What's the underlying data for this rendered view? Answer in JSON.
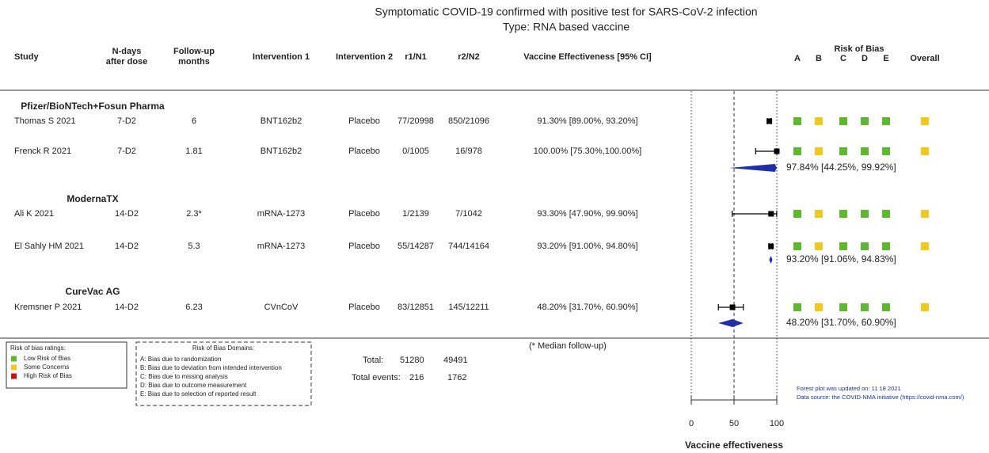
{
  "chart_data": {
    "type": "forest",
    "title": "Symptomatic COVID-19 confirmed with positive test for SARS-CoV-2 infection",
    "subtitle": "Type: RNA based vaccine",
    "columns": [
      "Study",
      "N-days after dose",
      "Follow-up months",
      "Intervention 1",
      "Intervention 2",
      "r1/N1",
      "r2/N2",
      "Vaccine Effectiveness [95% CI]"
    ],
    "rob_title": "Risk of Bias",
    "rob_columns": [
      "A",
      "B",
      "C",
      "D",
      "E",
      "Overall"
    ],
    "groups": [
      {
        "name": "Pfizer/BioNTech+Fosun Pharma",
        "studies": [
          {
            "study": "Thomas S 2021",
            "ndays": "7-D2",
            "followup": "6",
            "int1": "BNT162b2",
            "int2": "Placebo",
            "r1n1": "77/20998",
            "r2n2": "850/21096",
            "ve_label": "91.30% [89.00%, 93.20%]",
            "ve": 91.3,
            "lo": 89.0,
            "hi": 93.2,
            "rob": [
              "#5cb82e",
              "#f2c81d",
              "#5cb82e",
              "#5cb82e",
              "#5cb82e",
              "#f2c81d"
            ]
          },
          {
            "study": "Frenck R 2021",
            "ndays": "7-D2",
            "followup": "1.81",
            "int1": "BNT162b2",
            "int2": "Placebo",
            "r1n1": "0/1005",
            "r2n2": "16/978",
            "ve_label": "100.00% [75.30%,100.00%]",
            "ve": 100.0,
            "lo": 75.3,
            "hi": 100.0,
            "rob": [
              "#5cb82e",
              "#f2c81d",
              "#5cb82e",
              "#5cb82e",
              "#5cb82e",
              "#f2c81d"
            ]
          }
        ],
        "pooled": {
          "label": "97.84% [44.25%, 99.92%]",
          "ve": 97.84,
          "lo": 44.25,
          "hi": 99.92
        }
      },
      {
        "name": "ModernaTX",
        "studies": [
          {
            "study": "Ali K 2021",
            "ndays": "14-D2",
            "followup": "2.3*",
            "int1": "mRNA-1273",
            "int2": "Placebo",
            "r1n1": "1/2139",
            "r2n2": "7/1042",
            "ve_label": "93.30% [47.90%, 99.90%]",
            "ve": 93.3,
            "lo": 47.9,
            "hi": 99.9,
            "rob": [
              "#5cb82e",
              "#f2c81d",
              "#5cb82e",
              "#5cb82e",
              "#5cb82e",
              "#f2c81d"
            ]
          },
          {
            "study": "El Sahly HM 2021",
            "ndays": "14-D2",
            "followup": "5.3",
            "int1": "mRNA-1273",
            "int2": "Placebo",
            "r1n1": "55/14287",
            "r2n2": "744/14164",
            "ve_label": "93.20% [91.00%, 94.80%]",
            "ve": 93.2,
            "lo": 91.0,
            "hi": 94.8,
            "rob": [
              "#5cb82e",
              "#f2c81d",
              "#5cb82e",
              "#5cb82e",
              "#5cb82e",
              "#f2c81d"
            ]
          }
        ],
        "pooled": {
          "label": "93.20% [91.06%, 94.83%]",
          "ve": 93.2,
          "lo": 91.06,
          "hi": 94.83
        }
      },
      {
        "name": "CureVac AG",
        "studies": [
          {
            "study": "Kremsner P 2021",
            "ndays": "14-D2",
            "followup": "6.23",
            "int1": "CVnCoV",
            "int2": "Placebo",
            "r1n1": "83/12851",
            "r2n2": "145/12211",
            "ve_label": "48.20% [31.70%, 60.90%]",
            "ve": 48.2,
            "lo": 31.7,
            "hi": 60.9,
            "rob": [
              "#5cb82e",
              "#f2c81d",
              "#5cb82e",
              "#5cb82e",
              "#5cb82e",
              "#f2c81d"
            ]
          }
        ],
        "pooled": {
          "label": "48.20% [31.70%, 60.90%]",
          "ve": 48.2,
          "lo": 31.7,
          "hi": 60.9
        }
      }
    ],
    "xlim": [
      0,
      100
    ],
    "xticks": [
      0,
      50,
      100
    ],
    "xlabel": "Vaccine effectiveness",
    "square_color": "#000000",
    "diamond_color": "#1f2fa8",
    "note": "(* Median follow-up)",
    "totals": {
      "label": "Total:",
      "n1": 51280,
      "n2": 49491,
      "events_label": "Total events:",
      "e1": 216,
      "e2": 1762
    },
    "rob_legend": {
      "title": "Risk of bias ratings:",
      "items": [
        {
          "label": "Low Risk of Bias",
          "color": "#5cb82e"
        },
        {
          "label": "Some Concerns",
          "color": "#f2c81d"
        },
        {
          "label": "High Risk of Bias",
          "color": "#c0161b"
        }
      ]
    },
    "domains": {
      "title": "Risk of Bias Domains:",
      "items": [
        "A: Bias due to randomization",
        "B: Bias due to deviation from intended intervention",
        "C: Bias due to missing analysis",
        "D: Bias due to outcome measurement",
        "E: Bias due to selection of reported result"
      ]
    },
    "updated": "Forest plot was updated on: 11 18 2021",
    "source": "Data source: the COVID-NMA initiative (https://covid-nma.com/)"
  }
}
